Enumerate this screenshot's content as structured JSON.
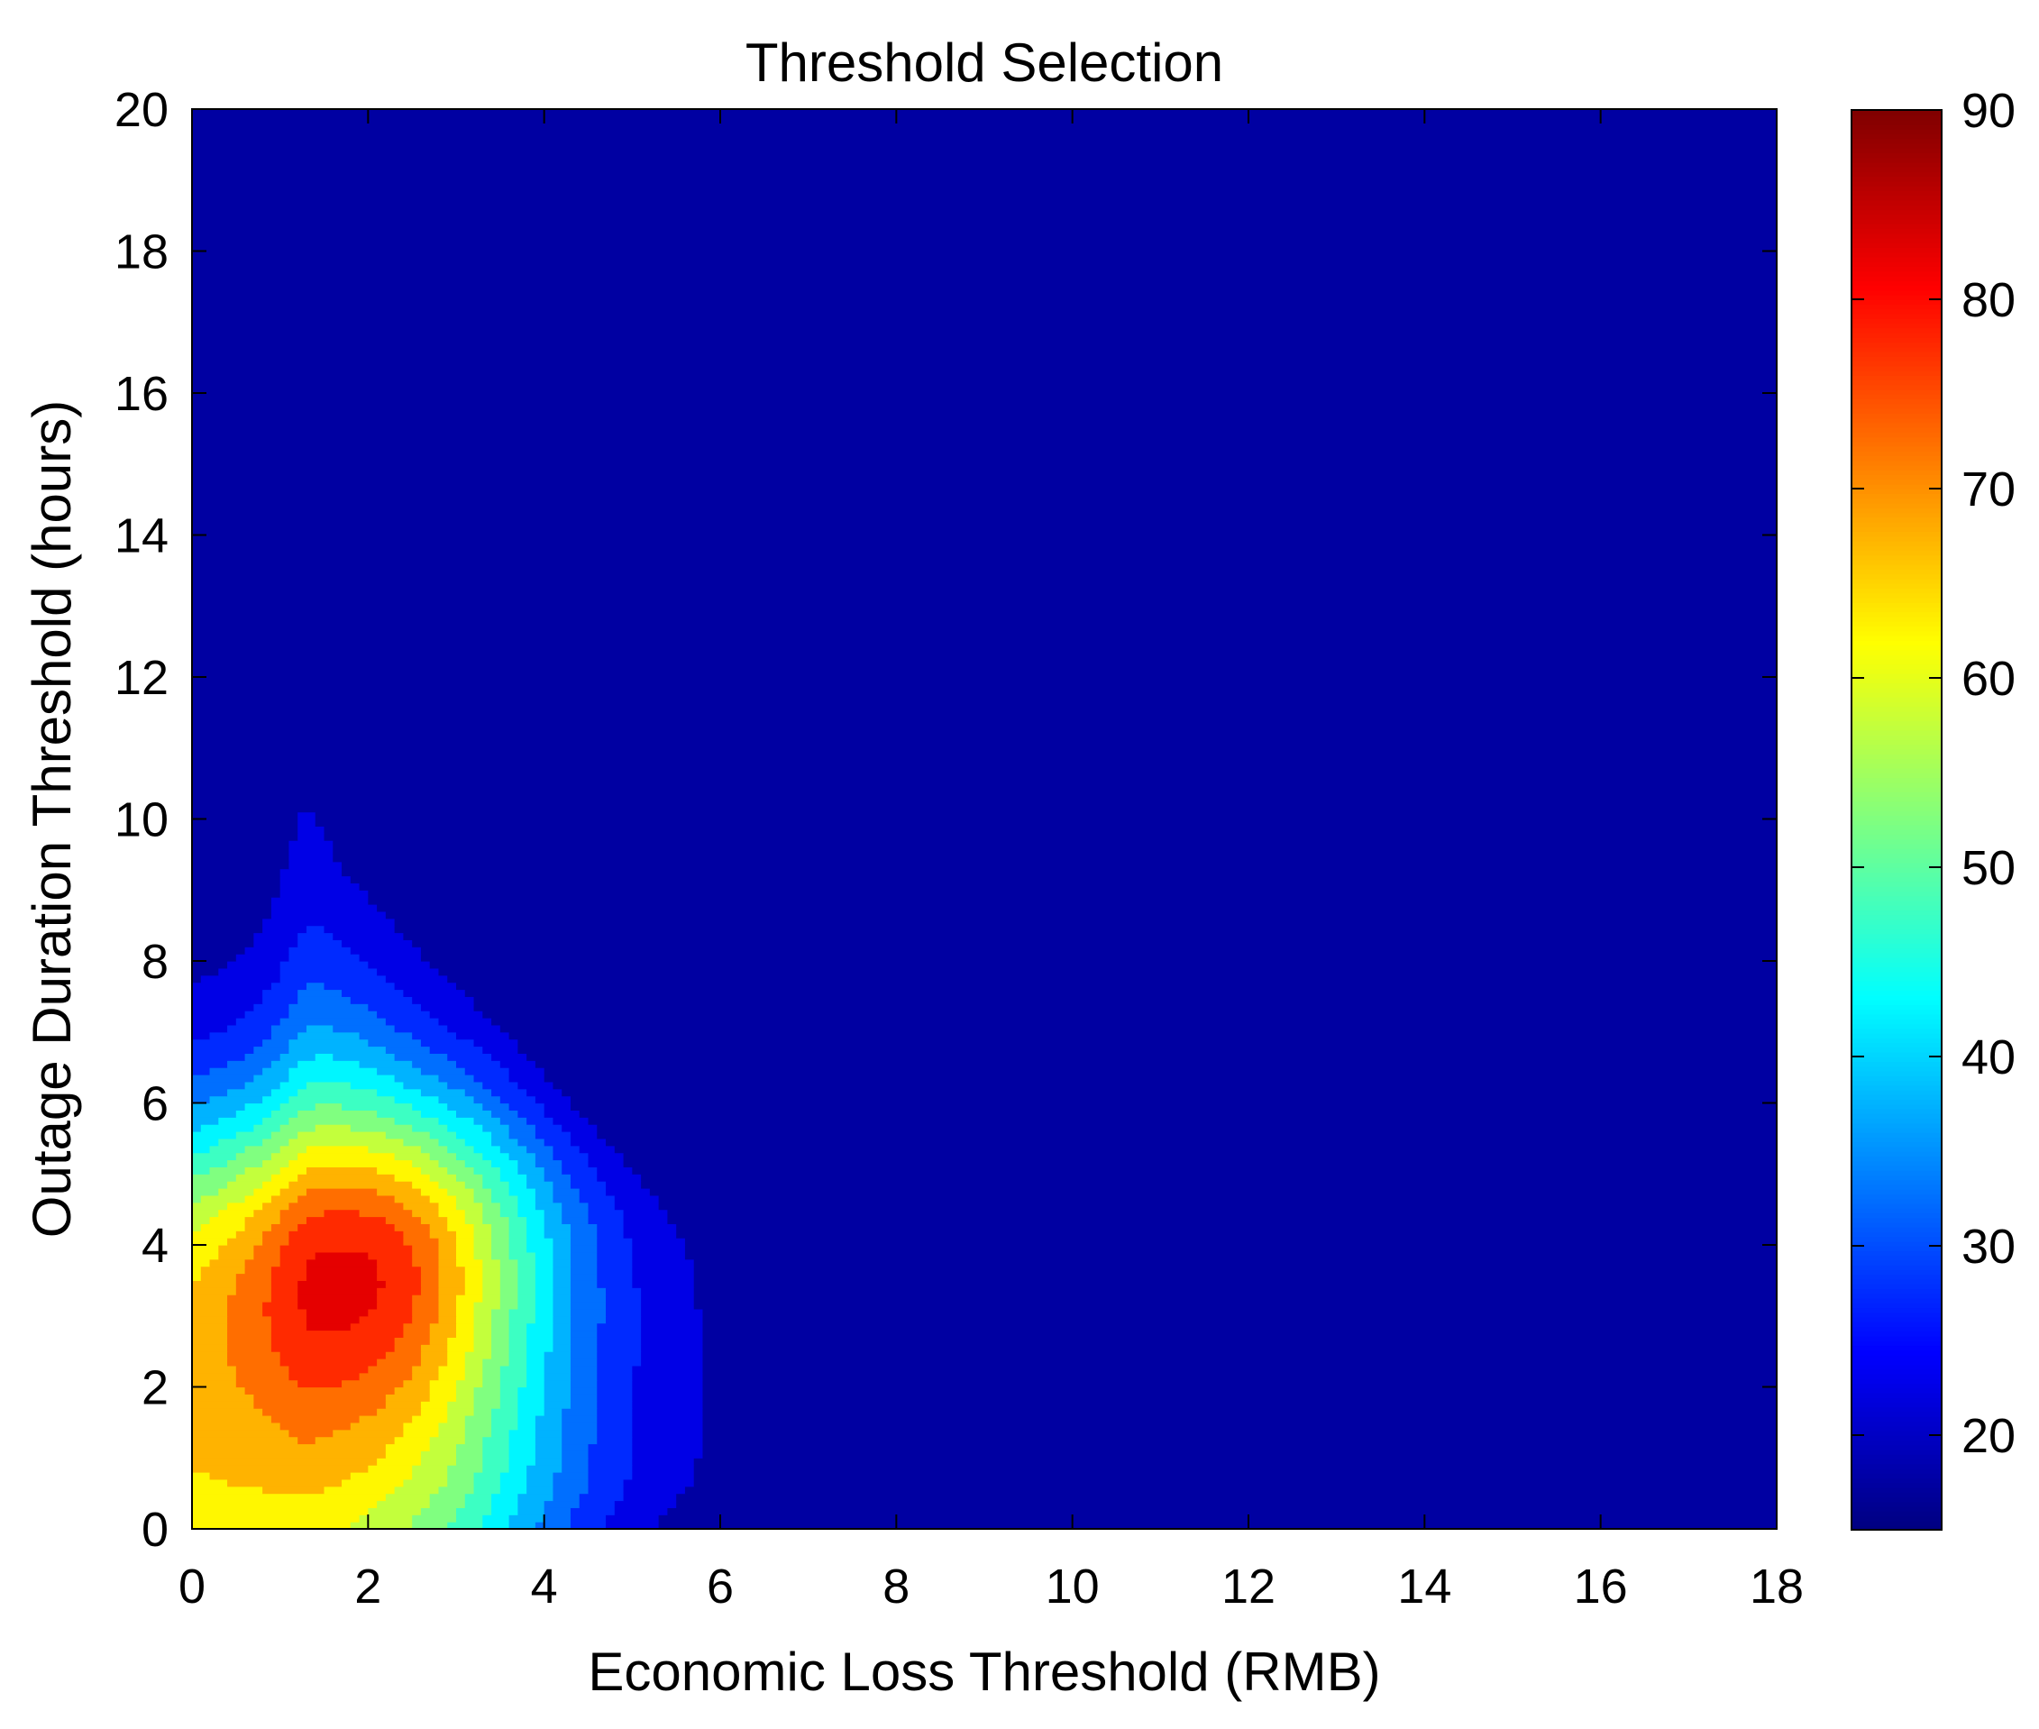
{
  "chart_data": {
    "type": "contour",
    "title": "Threshold Selection",
    "xlabel": "Economic Loss Threshold (RMB)",
    "ylabel": "Outage Duration Threshold (hours)",
    "xlim": [
      0,
      18
    ],
    "ylim": [
      0,
      20
    ],
    "xticks": [
      0,
      2,
      4,
      6,
      8,
      10,
      12,
      14,
      16,
      18
    ],
    "yticks": [
      0,
      2,
      4,
      6,
      8,
      10,
      12,
      14,
      16,
      18,
      20
    ],
    "colorbar": {
      "limits": [
        15,
        90
      ],
      "ticks": [
        20,
        30,
        40,
        50,
        60,
        70,
        80,
        90
      ],
      "colormap": "jet",
      "level_step": 5
    },
    "peak": {
      "x": 2,
      "y": 4,
      "value": 90
    },
    "x": [
      0,
      0.5,
      1,
      1.5,
      2,
      2.5,
      3,
      3.5,
      4,
      4.5,
      5,
      5.5,
      6,
      6.5,
      7,
      7.5,
      8,
      8.5,
      9,
      9.5,
      10,
      11,
      12,
      13,
      14,
      15,
      16,
      17,
      18
    ],
    "y": [
      0,
      0.5,
      1,
      1.5,
      2,
      2.5,
      3,
      3.5,
      4,
      4.5,
      5,
      5.5,
      6,
      6.5,
      7,
      7.5,
      8,
      8.5,
      9,
      9.5,
      10,
      11,
      12,
      13,
      14,
      15,
      16,
      17,
      18,
      19,
      20
    ],
    "values_note": "",
    "grid": false
  }
}
